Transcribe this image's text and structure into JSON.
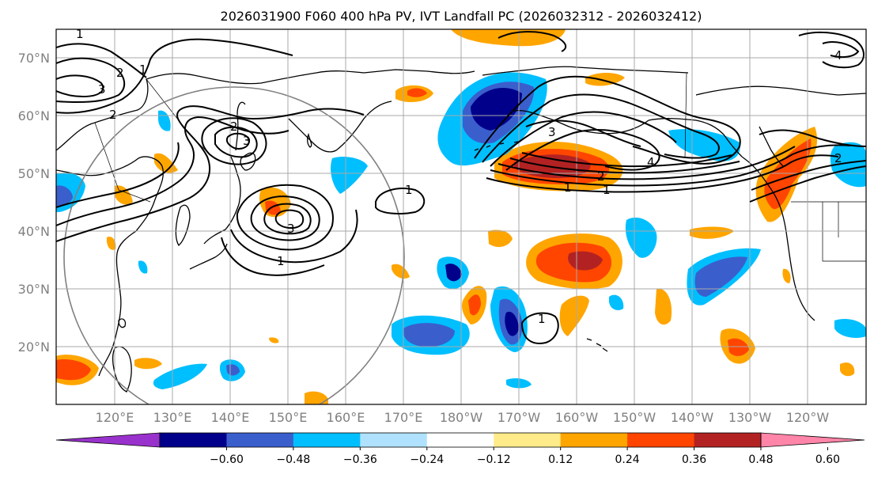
{
  "title": "2026031900 F060 400 hPa PV, IVT Landfall PC (2026032312 - 2026032412)",
  "lat_labels": [
    "70°N",
    "60°N",
    "50°N",
    "40°N",
    "30°N",
    "20°N"
  ],
  "lon_labels": [
    "120°E",
    "130°E",
    "140°E",
    "150°E",
    "160°E",
    "170°E",
    "180°W",
    "170°W",
    "160°W",
    "150°W",
    "140°W",
    "130°W",
    "120°W"
  ],
  "colorbar": {
    "ticks": [
      "−0.60",
      "−0.48",
      "−0.36",
      "−0.24",
      "−0.12",
      "0.12",
      "0.24",
      "0.36",
      "0.48",
      "0.60"
    ],
    "colors": [
      "#9932cc",
      "#00008b",
      "#3a5fcd",
      "#00bfff",
      "#b0e2ff",
      "#ffffff",
      "#ffeb8a",
      "#ffa500",
      "#ff4500",
      "#b22222",
      "#ff85a9"
    ]
  },
  "pv_contour_labels": [
    "1",
    "2",
    "3",
    "4",
    "1",
    "2",
    "3",
    "2",
    "3",
    "1",
    "1",
    "3",
    "4",
    "2",
    "1",
    "1",
    "2",
    "1"
  ],
  "colors": {
    "grid": "#a9a9a9",
    "circle": "#808080",
    "contour": "#000000"
  }
}
